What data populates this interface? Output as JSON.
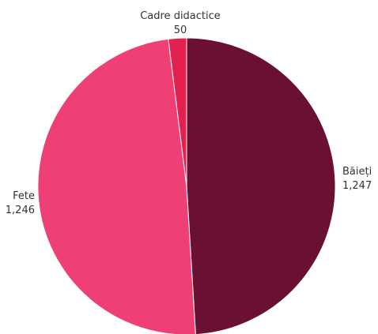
{
  "chart_data": {
    "type": "pie",
    "title": "",
    "slices": [
      {
        "label": "Băieți",
        "value": 1247,
        "value_label": "1,247",
        "color": "#6a1033"
      },
      {
        "label": "Fete",
        "value": 1246,
        "value_label": "1,246",
        "color": "#ee4075"
      },
      {
        "label": "Cadre didactice",
        "value": 50,
        "value_label": "50",
        "color": "#e3204f"
      }
    ],
    "start_angle": "top",
    "direction": "clockwise",
    "legend": "none"
  }
}
